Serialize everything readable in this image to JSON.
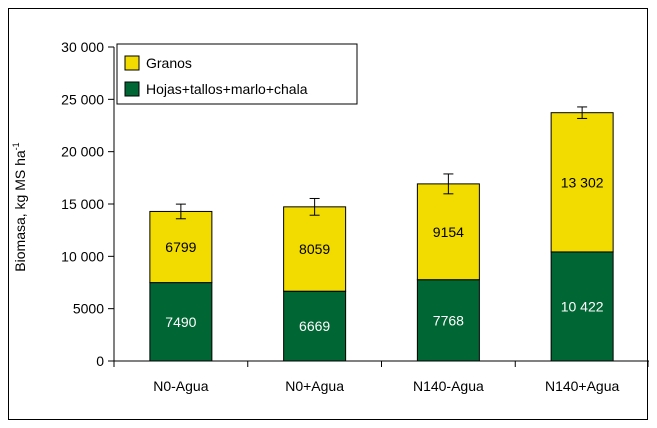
{
  "chart_data": {
    "type": "bar",
    "stacked": true,
    "categories": [
      "N0-Agua",
      "N0+Agua",
      "N140-Agua",
      "N140+Agua"
    ],
    "series": [
      {
        "name": "Hojas+tallos+marlo+chala",
        "values": [
          7490,
          6669,
          7768,
          10422
        ],
        "labels": [
          "7490",
          "6669",
          "7768",
          "10 422"
        ],
        "color": "#006633"
      },
      {
        "name": "Granos",
        "values": [
          6799,
          8059,
          9154,
          13302
        ],
        "labels": [
          "6799",
          "8059",
          "9154",
          "13 302"
        ],
        "color": "#f2dc00"
      }
    ],
    "error_bars": [
      700,
      800,
      950,
      550
    ],
    "ylabel": "Biomasa, kg MS ha",
    "ylabel_superscript": "-1",
    "ylim": [
      0,
      30000
    ],
    "yticks": [
      0,
      5000,
      10000,
      15000,
      20000,
      25000,
      30000
    ],
    "ytick_labels": [
      "0",
      "5000",
      "10 000",
      "15 000",
      "20 000",
      "25 000",
      "30 000"
    ],
    "legend_position": "top-left",
    "legend_order": [
      "Granos",
      "Hojas+tallos+marlo+chala"
    ],
    "grid": false
  }
}
